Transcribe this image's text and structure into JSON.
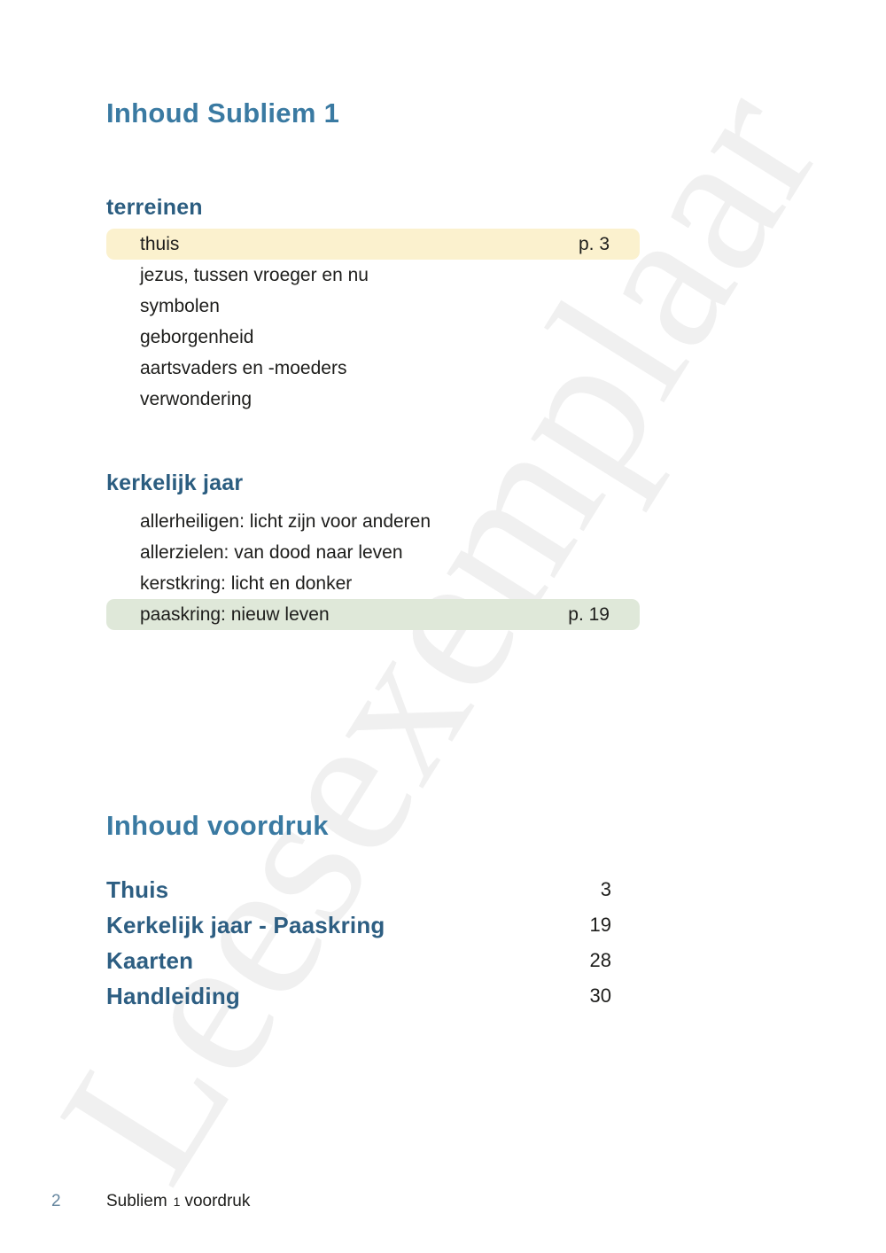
{
  "titles": {
    "main": "Inhoud Subliem 1",
    "voordruk": "Inhoud voordruk"
  },
  "colors": {
    "title_blue": "#3a7aa2",
    "section_blue": "#2b5d80",
    "entry_blue": "#2d5e82",
    "text_dark": "#1d1d1b",
    "highlight_yellow": "#fbf1ce",
    "highlight_green": "#dfe8d9",
    "footer_page_blue": "#64859e",
    "watermark_gray": "#f0f0f0"
  },
  "watermark": {
    "text": "Leesexemplaar"
  },
  "sections": [
    {
      "heading": "terreinen",
      "items": [
        {
          "label": "thuis",
          "page": "p. 3",
          "highlight": "yellow"
        },
        {
          "label": "jezus, tussen vroeger en nu",
          "page": ""
        },
        {
          "label": "symbolen",
          "page": ""
        },
        {
          "label": "geborgenheid",
          "page": ""
        },
        {
          "label": "aartsvaders en -moeders",
          "page": ""
        },
        {
          "label": "verwondering",
          "page": ""
        }
      ]
    },
    {
      "heading": "kerkelijk jaar",
      "items": [
        {
          "label": "allerheiligen: licht zijn voor anderen",
          "page": ""
        },
        {
          "label": "allerzielen: van dood naar leven",
          "page": ""
        },
        {
          "label": "kerstkring: licht en donker",
          "page": ""
        },
        {
          "label": "paaskring: nieuw leven",
          "page": "p. 19",
          "highlight": "green"
        }
      ]
    }
  ],
  "voordruk": {
    "entries": [
      {
        "label": "Thuis",
        "page": "3"
      },
      {
        "label": "Kerkelijk jaar - Paaskring",
        "page": "19"
      },
      {
        "label": "Kaarten",
        "page": "28"
      },
      {
        "label": "Handleiding",
        "page": "30"
      }
    ]
  },
  "footer": {
    "page_number": "2",
    "book_title": "Subliem",
    "volume": "1",
    "suffix": "voordruk"
  }
}
